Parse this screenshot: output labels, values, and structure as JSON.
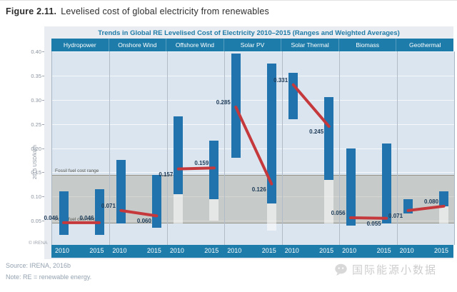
{
  "figure": {
    "label": "Figure 2.11.",
    "caption": "Levelised cost of global electricity from renewables"
  },
  "chart": {
    "title": "Trends in Global RE Levelised Cost of Electricity 2010–2015 (Ranges and Weighted Averages)",
    "y_axis": {
      "title": "2015 USD/kWh",
      "ticks": [
        "0.40",
        "0.35",
        "0.30",
        "0.25",
        "0.20",
        "0.15",
        "0.10",
        "0.05"
      ]
    },
    "fossil_band": {
      "min": 0.045,
      "max": 0.145,
      "label_top": "Fossil fuel cost range",
      "label_bottom": "Fossil fuel cost range"
    },
    "copyright": "© IRENA",
    "years": [
      "2010",
      "2015"
    ]
  },
  "chart_data": {
    "type": "bar",
    "subtype": "range-bars-with-weighted-average-line",
    "title": "Trends in Global RE Levelised Cost of Electricity 2010–2015 (Ranges and Weighted Averages)",
    "xlabel": "",
    "ylabel": "2015 USD/kWh",
    "ylim": [
      0,
      0.4
    ],
    "gridlines": true,
    "x_years": [
      "2010",
      "2015"
    ],
    "categories": [
      "Hydropower",
      "Onshore Wind",
      "Offshore Wind",
      "Solar PV",
      "Solar Thermal",
      "Biomass",
      "Geothermal"
    ],
    "fossil_fuel_cost_range": [
      0.045,
      0.145
    ],
    "series": [
      {
        "name": "Hydropower",
        "points": [
          {
            "year": "2010",
            "weighted_avg": 0.046,
            "label": "0.046",
            "range": [
              0.02,
              0.11
            ],
            "label_pos": "above"
          },
          {
            "year": "2015",
            "weighted_avg": 0.046,
            "label": "0.046",
            "range": [
              0.02,
              0.115
            ],
            "label_pos": "above"
          }
        ]
      },
      {
        "name": "Onshore Wind",
        "points": [
          {
            "year": "2010",
            "weighted_avg": 0.071,
            "label": "0.071",
            "range": [
              0.045,
              0.175
            ],
            "label_pos": "above"
          },
          {
            "year": "2015",
            "weighted_avg": 0.06,
            "label": "0.060",
            "range": [
              0.035,
              0.145
            ],
            "label_pos": "below"
          }
        ]
      },
      {
        "name": "Offshore Wind",
        "points": [
          {
            "year": "2010",
            "weighted_avg": 0.157,
            "label": "0.157",
            "range": [
              0.105,
              0.265
            ],
            "light_range": [
              0.045,
              0.105
            ],
            "label_pos": "below"
          },
          {
            "year": "2015",
            "weighted_avg": 0.159,
            "label": "0.159",
            "range": [
              0.095,
              0.215
            ],
            "light_range": [
              0.05,
              0.095
            ],
            "label_pos": "above"
          }
        ]
      },
      {
        "name": "Solar PV",
        "points": [
          {
            "year": "2010",
            "weighted_avg": 0.285,
            "label": "0.285",
            "range": [
              0.18,
              0.395
            ],
            "label_pos": "above"
          },
          {
            "year": "2015",
            "weighted_avg": 0.126,
            "label": "0.126",
            "range": [
              0.085,
              0.375
            ],
            "light_range": [
              0.03,
              0.085
            ],
            "label_pos": "below"
          }
        ]
      },
      {
        "name": "Solar Thermal",
        "points": [
          {
            "year": "2010",
            "weighted_avg": 0.331,
            "label": "0.331",
            "range": [
              0.26,
              0.355
            ],
            "label_pos": "above"
          },
          {
            "year": "2015",
            "weighted_avg": 0.245,
            "label": "0.245",
            "range": [
              0.135,
              0.305
            ],
            "light_range": [
              0.045,
              0.135
            ],
            "label_pos": "below"
          }
        ]
      },
      {
        "name": "Biomass",
        "points": [
          {
            "year": "2010",
            "weighted_avg": 0.056,
            "label": "0.056",
            "range": [
              0.04,
              0.2
            ],
            "label_pos": "above"
          },
          {
            "year": "2015",
            "weighted_avg": 0.055,
            "label": "0.055",
            "range": [
              0.045,
              0.21
            ],
            "label_pos": "below"
          }
        ]
      },
      {
        "name": "Geothermal",
        "points": [
          {
            "year": "2010",
            "weighted_avg": 0.071,
            "label": "0.071",
            "range": [
              0.065,
              0.095
            ],
            "label_pos": "below"
          },
          {
            "year": "2015",
            "weighted_avg": 0.08,
            "label": "0.080",
            "range": [
              0.08,
              0.11
            ],
            "light_range": [
              0.045,
              0.08
            ],
            "label_pos": "above"
          }
        ]
      }
    ]
  },
  "footer": {
    "source": "Source: IRENA, 2016b",
    "note": "Note: RE = renewable energy."
  },
  "watermark": {
    "icon": "wechat-icon",
    "text": "国际能源小数据"
  },
  "colors": {
    "band_blue": "#1d7ca9",
    "bar_blue": "#2173ad",
    "line_red": "#c5383c",
    "plot_bg": "#dbe5ef",
    "box_bg": "#e9edf2",
    "title_blue": "#1e7aa6",
    "fossil_band_gray": "#acaa9e",
    "avg_label_navy": "#1c3a57"
  }
}
